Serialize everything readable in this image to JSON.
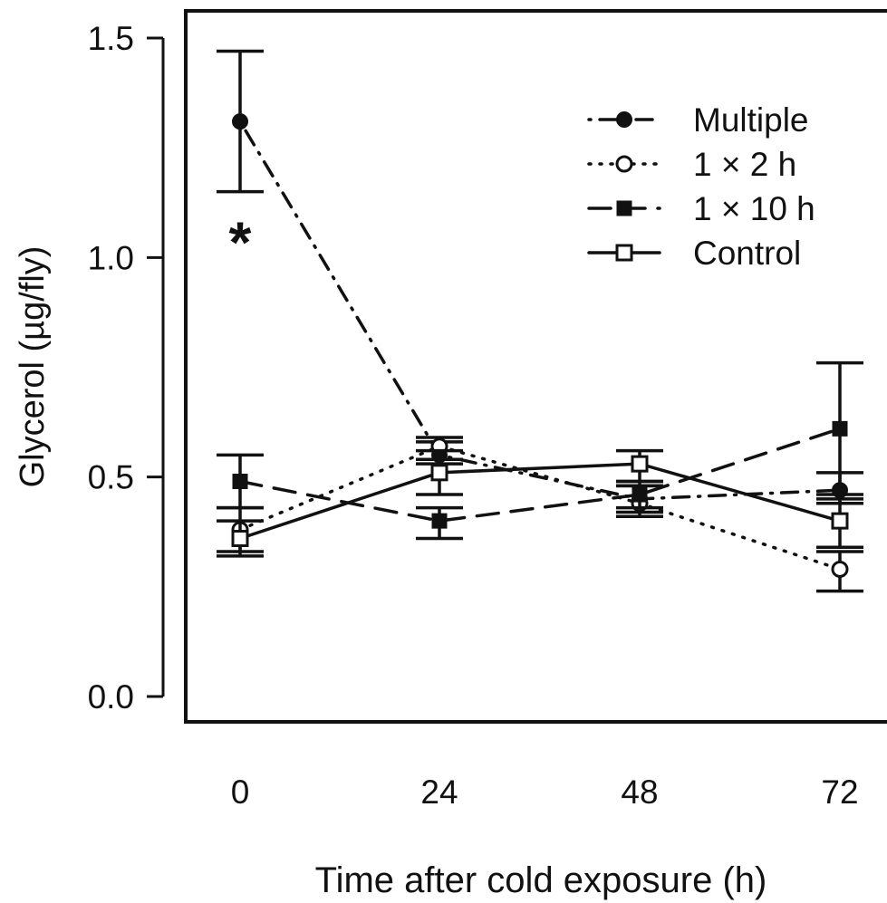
{
  "chart_data": {
    "type": "line",
    "title": "",
    "xlabel": "Time after cold exposure (h)",
    "ylabel": "Glycerol (µg/fly)",
    "x": [
      0,
      24,
      48,
      72
    ],
    "x_tick_labels": [
      "0",
      "24",
      "48",
      "72"
    ],
    "y_ticks": [
      0.0,
      0.5,
      1.0,
      1.5
    ],
    "y_tick_labels": [
      "0.0",
      "0.5",
      "1.0",
      "1.5"
    ],
    "ylim": [
      -0.05,
      1.57
    ],
    "grid": false,
    "legend_position": "top-right",
    "series": [
      {
        "name": "Multiple",
        "line_style": "dash-dot",
        "marker": "filled-circle",
        "values": [
          1.31,
          0.55,
          0.45,
          0.47
        ],
        "error_low": [
          1.15,
          0.53,
          0.42,
          0.44
        ],
        "error_high": [
          1.47,
          0.58,
          0.48,
          0.51
        ]
      },
      {
        "name": "1 × 2 h",
        "line_style": "dotted",
        "marker": "open-circle",
        "values": [
          0.38,
          0.57,
          0.44,
          0.29
        ],
        "error_low": [
          0.33,
          0.54,
          0.41,
          0.24
        ],
        "error_high": [
          0.43,
          0.59,
          0.48,
          0.33
        ]
      },
      {
        "name": "1 × 10 h",
        "line_style": "dashed",
        "marker": "filled-square",
        "values": [
          0.49,
          0.4,
          0.46,
          0.61
        ],
        "error_low": [
          0.43,
          0.36,
          0.43,
          0.45
        ],
        "error_high": [
          0.55,
          0.43,
          0.49,
          0.76
        ]
      },
      {
        "name": "Control",
        "line_style": "solid",
        "marker": "open-square",
        "values": [
          0.36,
          0.51,
          0.53,
          0.4
        ],
        "error_low": [
          0.32,
          0.46,
          0.49,
          0.34
        ],
        "error_high": [
          0.4,
          0.56,
          0.56,
          0.46
        ]
      }
    ],
    "annotations": [
      {
        "text": "*",
        "x": 0,
        "y": 1.06
      }
    ]
  }
}
